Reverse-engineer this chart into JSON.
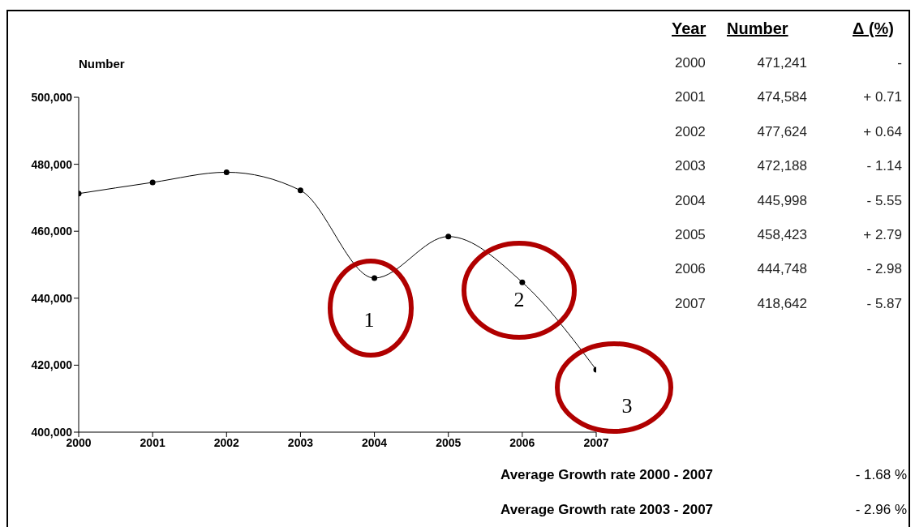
{
  "chart_data": {
    "type": "line",
    "ylabel": "Number",
    "x": [
      2000,
      2001,
      2002,
      2003,
      2004,
      2005,
      2006,
      2007
    ],
    "values": [
      471241,
      474584,
      477624,
      472188,
      445998,
      458423,
      444748,
      418642
    ],
    "color": "#000000",
    "marker": "circle",
    "grid": false,
    "xlim": [
      2000,
      2007
    ],
    "xticks": [
      2000,
      2001,
      2002,
      2003,
      2004,
      2005,
      2006,
      2007
    ],
    "ylim": [
      400000,
      500000
    ],
    "yticks": [
      {
        "value": 400000,
        "label": "400,000"
      },
      {
        "value": 420000,
        "label": "420,000"
      },
      {
        "value": 440000,
        "label": "440,000"
      },
      {
        "value": 460000,
        "label": "460,000"
      },
      {
        "value": 480000,
        "label": "480,000"
      },
      {
        "value": 500000,
        "label": "500,000"
      }
    ],
    "annotations": [
      "Year",
      "Number",
      "Δ (%)",
      "2000",
      "471,241",
      "-",
      "2001",
      "474,584",
      "+ 0.71",
      "2002",
      "477,624",
      "+ 0.64",
      "2003",
      "472,188",
      "- 1.14",
      "2004",
      "445,998",
      "- 5.55",
      "2005",
      "458,423",
      "+ 2.79",
      "2006",
      "444,748",
      "- 2.98",
      "2007",
      "418,642",
      "- 5.87",
      "Average Growth rate 2000 - 2007",
      "- 1.68 %",
      "Average Growth rate 2003 - 2007",
      "- 2.96 %",
      "1",
      "2",
      "3"
    ]
  }
}
